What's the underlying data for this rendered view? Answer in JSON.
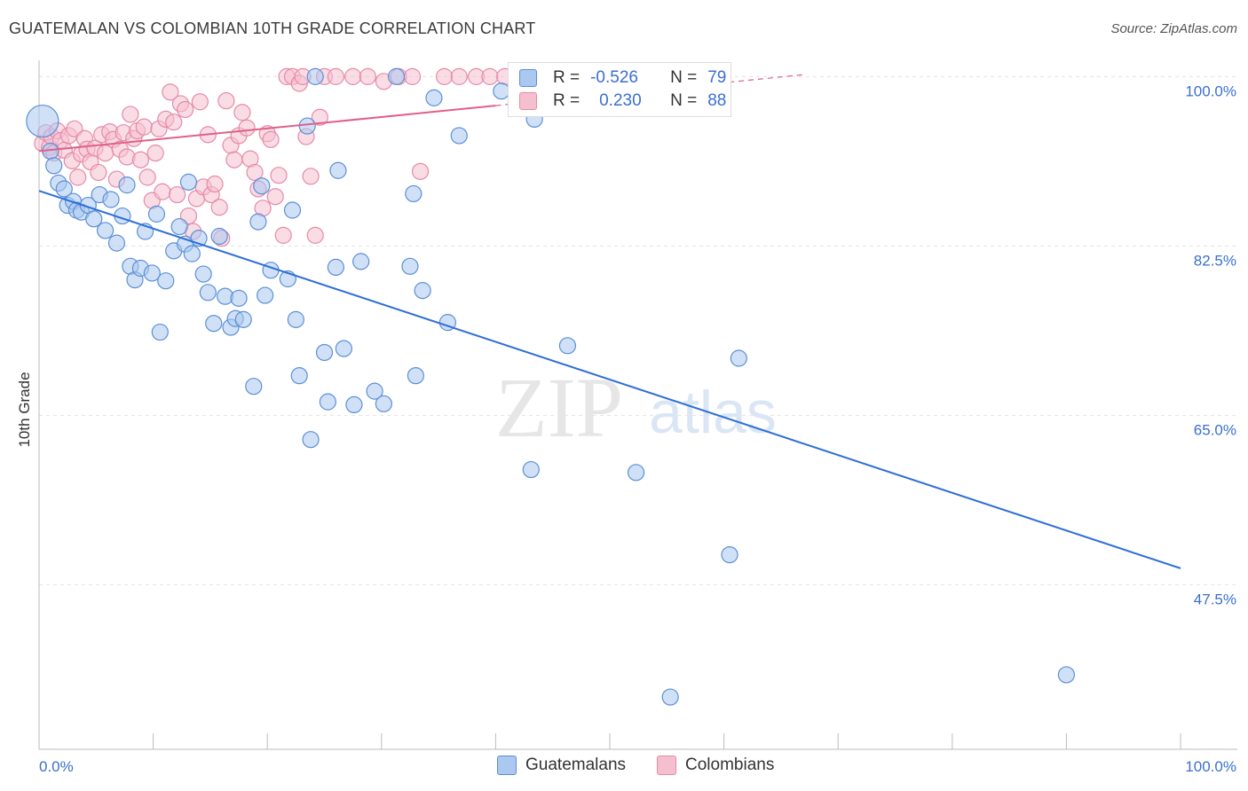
{
  "title": "GUATEMALAN VS COLOMBIAN 10TH GRADE CORRELATION CHART",
  "source": "Source: ZipAtlas.com",
  "watermark": {
    "zip": "ZIP",
    "atlas": "atlas"
  },
  "legend": {
    "rows": [
      {
        "r_label": "R =",
        "r_value": "-0.526",
        "n_label": "N =",
        "n_value": "79"
      },
      {
        "r_label": "R =",
        "r_value": "0.230",
        "n_label": "N =",
        "n_value": "88"
      }
    ]
  },
  "chart_data": {
    "type": "scatter",
    "title": "GUATEMALAN VS COLOMBIAN 10TH GRADE CORRELATION CHART",
    "ylabel": "10th Grade",
    "xlabel": "",
    "x_tick_labels": [
      "0.0%",
      "100.0%"
    ],
    "y_tick_labels": [
      "100.0%",
      "82.5%",
      "65.0%",
      "47.5%"
    ],
    "y_ticks": [
      100.0,
      82.5,
      65.0,
      47.5
    ],
    "xlim": [
      0,
      100
    ],
    "ylim": [
      30.5,
      101.5
    ],
    "grid": "horizontal dashed",
    "legend_position": "top-center",
    "colors": {
      "guatemalans_fill": "#aac8f0",
      "guatemalans_stroke": "#5b8fd6",
      "guatemalans_line": "#2d6fd6",
      "colombians_fill": "#f6bfd0",
      "colombians_stroke": "#e58aa8",
      "colombians_line": "#e0608a",
      "axis_text": "#3a6fcf"
    },
    "series": [
      {
        "name": "Guatemalans",
        "trend": {
          "x0": 0,
          "y0": 88.2,
          "x1": 100,
          "y1": 49.2
        },
        "points": [
          [
            0.3,
            95.4
          ],
          [
            1.0,
            92.3
          ],
          [
            1.3,
            90.8
          ],
          [
            1.7,
            89.0
          ],
          [
            2.2,
            88.4
          ],
          [
            2.5,
            86.7
          ],
          [
            3.0,
            87.1
          ],
          [
            3.3,
            86.2
          ],
          [
            3.7,
            86.0
          ],
          [
            4.3,
            86.7
          ],
          [
            4.8,
            85.3
          ],
          [
            5.3,
            87.8
          ],
          [
            5.8,
            84.1
          ],
          [
            6.3,
            87.3
          ],
          [
            6.8,
            82.8
          ],
          [
            7.3,
            85.6
          ],
          [
            7.7,
            88.8
          ],
          [
            8.0,
            80.4
          ],
          [
            8.4,
            79.0
          ],
          [
            8.9,
            80.2
          ],
          [
            9.3,
            84.0
          ],
          [
            9.9,
            79.7
          ],
          [
            10.3,
            85.8
          ],
          [
            10.6,
            73.6
          ],
          [
            11.1,
            78.9
          ],
          [
            11.8,
            82.0
          ],
          [
            12.3,
            84.5
          ],
          [
            12.8,
            82.7
          ],
          [
            13.1,
            89.1
          ],
          [
            13.4,
            81.7
          ],
          [
            14.0,
            83.3
          ],
          [
            14.4,
            79.6
          ],
          [
            14.8,
            77.7
          ],
          [
            15.3,
            74.5
          ],
          [
            15.8,
            83.5
          ],
          [
            16.3,
            77.3
          ],
          [
            16.8,
            74.1
          ],
          [
            17.2,
            75.0
          ],
          [
            17.5,
            77.1
          ],
          [
            17.9,
            74.9
          ],
          [
            18.8,
            68.0
          ],
          [
            19.2,
            85.0
          ],
          [
            19.5,
            88.7
          ],
          [
            19.8,
            77.4
          ],
          [
            20.3,
            80.0
          ],
          [
            21.8,
            79.1
          ],
          [
            22.2,
            86.2
          ],
          [
            22.5,
            74.9
          ],
          [
            22.8,
            69.1
          ],
          [
            23.5,
            94.9
          ],
          [
            23.8,
            62.5
          ],
          [
            24.2,
            100.0
          ],
          [
            25.0,
            71.5
          ],
          [
            25.3,
            66.4
          ],
          [
            26.0,
            80.3
          ],
          [
            26.2,
            90.3
          ],
          [
            26.7,
            71.9
          ],
          [
            27.6,
            66.1
          ],
          [
            28.2,
            80.9
          ],
          [
            29.4,
            67.5
          ],
          [
            30.2,
            66.2
          ],
          [
            31.3,
            100.0
          ],
          [
            32.5,
            80.4
          ],
          [
            32.8,
            87.9
          ],
          [
            33.0,
            69.1
          ],
          [
            33.6,
            77.9
          ],
          [
            34.6,
            97.8
          ],
          [
            35.8,
            74.6
          ],
          [
            36.8,
            93.9
          ],
          [
            40.5,
            98.5
          ],
          [
            43.1,
            59.4
          ],
          [
            43.4,
            95.6
          ],
          [
            46.3,
            72.2
          ],
          [
            52.3,
            59.1
          ],
          [
            55.3,
            35.9
          ],
          [
            58.8,
            100.0
          ],
          [
            60.5,
            50.6
          ],
          [
            61.3,
            70.9
          ],
          [
            90.0,
            38.2
          ]
        ]
      },
      {
        "name": "Colombians",
        "trend": {
          "x0": 0,
          "y0": 92.3,
          "x1": 40,
          "y1": 97.0
        },
        "trend_dashed": {
          "x0": 40,
          "y0": 97.0,
          "x1": 67,
          "y1": 100.2
        },
        "points": [
          [
            0.3,
            93.1
          ],
          [
            0.6,
            94.2
          ],
          [
            0.9,
            92.7
          ],
          [
            1.1,
            93.8
          ],
          [
            1.3,
            92.1
          ],
          [
            1.6,
            94.4
          ],
          [
            1.9,
            93.4
          ],
          [
            2.2,
            92.4
          ],
          [
            2.6,
            93.9
          ],
          [
            2.9,
            91.3
          ],
          [
            3.1,
            94.6
          ],
          [
            3.4,
            89.6
          ],
          [
            3.7,
            92.0
          ],
          [
            4.0,
            93.6
          ],
          [
            4.2,
            92.5
          ],
          [
            4.5,
            91.2
          ],
          [
            4.9,
            92.6
          ],
          [
            5.2,
            90.1
          ],
          [
            5.5,
            94.0
          ],
          [
            5.8,
            92.1
          ],
          [
            6.2,
            94.3
          ],
          [
            6.5,
            93.5
          ],
          [
            6.8,
            89.4
          ],
          [
            7.1,
            92.5
          ],
          [
            7.4,
            94.2
          ],
          [
            7.7,
            91.7
          ],
          [
            8.0,
            96.1
          ],
          [
            8.3,
            93.6
          ],
          [
            8.6,
            94.4
          ],
          [
            8.9,
            91.4
          ],
          [
            9.2,
            94.8
          ],
          [
            9.5,
            89.6
          ],
          [
            9.9,
            87.2
          ],
          [
            10.2,
            92.1
          ],
          [
            10.5,
            94.6
          ],
          [
            10.8,
            88.1
          ],
          [
            11.1,
            95.6
          ],
          [
            11.5,
            98.4
          ],
          [
            11.8,
            95.3
          ],
          [
            12.1,
            87.8
          ],
          [
            12.4,
            97.2
          ],
          [
            12.8,
            96.6
          ],
          [
            13.1,
            85.6
          ],
          [
            13.5,
            84.0
          ],
          [
            13.8,
            87.4
          ],
          [
            14.1,
            97.4
          ],
          [
            14.4,
            88.6
          ],
          [
            14.8,
            94.0
          ],
          [
            15.1,
            87.8
          ],
          [
            15.4,
            88.9
          ],
          [
            15.8,
            86.5
          ],
          [
            16.0,
            83.3
          ],
          [
            16.4,
            97.5
          ],
          [
            16.8,
            92.9
          ],
          [
            17.1,
            91.4
          ],
          [
            17.5,
            93.9
          ],
          [
            17.8,
            96.3
          ],
          [
            18.2,
            94.7
          ],
          [
            18.5,
            91.5
          ],
          [
            18.9,
            90.1
          ],
          [
            19.2,
            88.4
          ],
          [
            19.6,
            86.4
          ],
          [
            20.0,
            94.1
          ],
          [
            20.3,
            93.5
          ],
          [
            20.7,
            87.6
          ],
          [
            21.0,
            89.8
          ],
          [
            21.4,
            83.6
          ],
          [
            21.7,
            100.0
          ],
          [
            22.2,
            100.0
          ],
          [
            22.8,
            99.3
          ],
          [
            23.1,
            100.0
          ],
          [
            23.4,
            93.8
          ],
          [
            23.8,
            89.7
          ],
          [
            24.2,
            83.6
          ],
          [
            24.6,
            95.8
          ],
          [
            25.0,
            100.0
          ],
          [
            26.0,
            100.0
          ],
          [
            27.5,
            100.0
          ],
          [
            28.8,
            100.0
          ],
          [
            30.2,
            99.5
          ],
          [
            31.5,
            100.0
          ],
          [
            32.7,
            100.0
          ],
          [
            33.4,
            90.2
          ],
          [
            35.5,
            100.0
          ],
          [
            36.8,
            100.0
          ],
          [
            38.3,
            100.0
          ],
          [
            39.5,
            100.0
          ],
          [
            40.8,
            100.0
          ]
        ]
      }
    ]
  },
  "bottom_legend": {
    "series1": "Guatemalans",
    "series2": "Colombians"
  }
}
